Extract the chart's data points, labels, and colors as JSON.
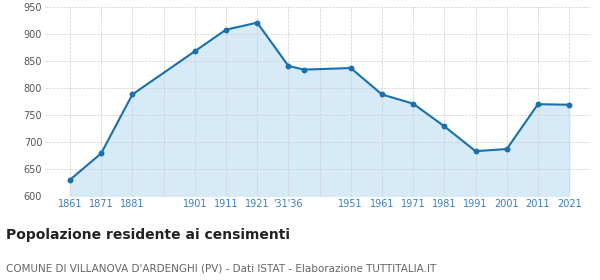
{
  "years": [
    1861,
    1871,
    1881,
    1901,
    1911,
    1921,
    1931,
    1936,
    1951,
    1961,
    1971,
    1981,
    1991,
    2001,
    2011,
    2021
  ],
  "population": [
    630,
    679,
    788,
    868,
    908,
    921,
    841,
    834,
    837,
    788,
    771,
    729,
    683,
    687,
    770,
    769
  ],
  "ylim": [
    600,
    950
  ],
  "yticks": [
    600,
    650,
    700,
    750,
    800,
    850,
    900,
    950
  ],
  "x_tick_positions": [
    1861,
    1871,
    1881,
    1891,
    1901,
    1911,
    1921,
    1931,
    1941,
    1951,
    1961,
    1971,
    1981,
    1991,
    2001,
    2011,
    2021
  ],
  "x_tick_labels": [
    "1861",
    "1871",
    "1881",
    "",
    "1901",
    "1911",
    "1921",
    "'31'36",
    "",
    "1951",
    "1961",
    "1971",
    "1981",
    "1991",
    "2001",
    "2011",
    "2021"
  ],
  "line_color": "#1a6fad",
  "fill_color": "#d6eaf8",
  "marker_color": "#1a6fad",
  "grid_color": "#cccccc",
  "title": "Popolazione residente ai censimenti",
  "subtitle": "COMUNE DI VILLANOVA D'ARDENGHI (PV) - Dati ISTAT - Elaborazione TUTTITALIA.IT",
  "title_fontsize": 10,
  "subtitle_fontsize": 7.5,
  "tick_color": "#3a7fc1",
  "ytick_color": "#555555",
  "background_color": "#ffffff"
}
